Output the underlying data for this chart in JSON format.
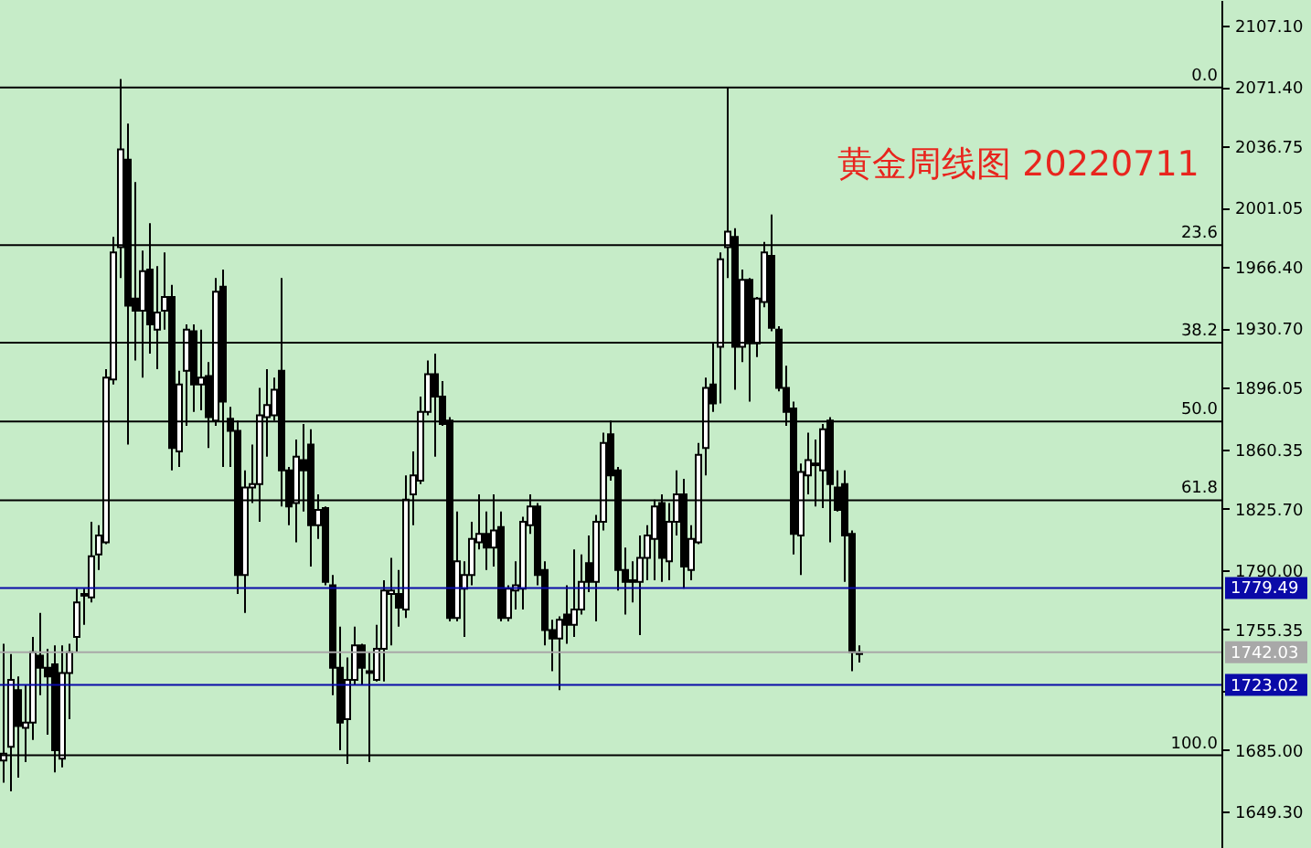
{
  "chart_data": {
    "type": "candlestick",
    "title": "黄金周线图 20220711",
    "categories": [
      null,
      null,
      null,
      null,
      null,
      null,
      null,
      null,
      null,
      null,
      null,
      null,
      null,
      null,
      null,
      null,
      null,
      null,
      null,
      null,
      null,
      null,
      null,
      null,
      null,
      null,
      null,
      null,
      null,
      null,
      null,
      null,
      null,
      null,
      null,
      null,
      null,
      null,
      null,
      null,
      null,
      null,
      null,
      null,
      null,
      null,
      null,
      null,
      null,
      null,
      null,
      null,
      null,
      null,
      null,
      null,
      null,
      null,
      null,
      null,
      null,
      null,
      null,
      null,
      null,
      null,
      null,
      null,
      null,
      null,
      null,
      null,
      null,
      null,
      null,
      null,
      null,
      null,
      null,
      null,
      null,
      null,
      null,
      null,
      null,
      null,
      null,
      null,
      null,
      null,
      null,
      null,
      null,
      null,
      null,
      null,
      null,
      null,
      null,
      null,
      null,
      null,
      null,
      null,
      null,
      null,
      null,
      null,
      null,
      null,
      null,
      null,
      null,
      null,
      null,
      null,
      null,
      null,
      null,
      null,
      null,
      null,
      null,
      null,
      null,
      null,
      null,
      null,
      null,
      null,
      null,
      null,
      null,
      null,
      null,
      null,
      null,
      null,
      null,
      null,
      null,
      null,
      null,
      null,
      null,
      null,
      null,
      null,
      null,
      null,
      null,
      null,
      null,
      null,
      null,
      null,
      null,
      null,
      null,
      null,
      null,
      null,
      null,
      null,
      null,
      null,
      null
    ],
    "ohlc": [
      [
        1679,
        1747,
        1666,
        1683
      ],
      [
        1687,
        1741,
        1661,
        1726
      ],
      [
        1720,
        1728,
        1669,
        1699
      ],
      [
        1698,
        1723,
        1678,
        1701
      ],
      [
        1701,
        1751,
        1691,
        1742
      ],
      [
        1740,
        1765,
        1717,
        1733
      ],
      [
        1733,
        1744,
        1694,
        1728
      ],
      [
        1735,
        1746,
        1672,
        1685
      ],
      [
        1680,
        1746,
        1675,
        1730
      ],
      [
        1730,
        1747,
        1703,
        1742
      ],
      [
        1751,
        1779,
        1742,
        1771
      ],
      [
        1775,
        1779,
        1758,
        1776
      ],
      [
        1774,
        1818,
        1771,
        1798
      ],
      [
        1799,
        1816,
        1790,
        1810
      ],
      [
        1806,
        1907,
        1805,
        1902
      ],
      [
        1901,
        1984,
        1898,
        1975
      ],
      [
        1978,
        2076,
        1960,
        2035
      ],
      [
        2029,
        2050,
        1863,
        1944
      ],
      [
        1948,
        2016,
        1912,
        1941
      ],
      [
        1941,
        1976,
        1902,
        1964
      ],
      [
        1965,
        1992,
        1916,
        1933
      ],
      [
        1930,
        1967,
        1907,
        1940
      ],
      [
        1941,
        1975,
        1930,
        1949
      ],
      [
        1949,
        1956,
        1848,
        1861
      ],
      [
        1859,
        1906,
        1850,
        1898
      ],
      [
        1906,
        1933,
        1874,
        1930
      ],
      [
        1929,
        1933,
        1882,
        1898
      ],
      [
        1898,
        1930,
        1883,
        1902
      ],
      [
        1903,
        1911,
        1861,
        1879
      ],
      [
        1877,
        1960,
        1874,
        1952
      ],
      [
        1955,
        1965,
        1850,
        1888
      ],
      [
        1878,
        1885,
        1850,
        1871
      ],
      [
        1871,
        1877,
        1776,
        1787
      ],
      [
        1787,
        1848,
        1765,
        1838
      ],
      [
        1838,
        1863,
        1829,
        1840
      ],
      [
        1840,
        1896,
        1818,
        1880
      ],
      [
        1879,
        1907,
        1856,
        1886
      ],
      [
        1880,
        1902,
        1877,
        1895
      ],
      [
        1906,
        1960,
        1827,
        1848
      ],
      [
        1848,
        1850,
        1816,
        1827
      ],
      [
        1829,
        1866,
        1806,
        1856
      ],
      [
        1854,
        1875,
        1824,
        1848
      ],
      [
        1863,
        1872,
        1792,
        1816
      ],
      [
        1816,
        1834,
        1808,
        1825
      ],
      [
        1826,
        1827,
        1781,
        1783
      ],
      [
        1781,
        1787,
        1717,
        1733
      ],
      [
        1733,
        1757,
        1685,
        1701
      ],
      [
        1703,
        1739,
        1677,
        1726
      ],
      [
        1726,
        1757,
        1723,
        1746
      ],
      [
        1746,
        1747,
        1723,
        1733
      ],
      [
        1731,
        1742,
        1678,
        1730
      ],
      [
        1726,
        1758,
        1725,
        1744
      ],
      [
        1744,
        1784,
        1725,
        1778
      ],
      [
        1776,
        1797,
        1746,
        1778
      ],
      [
        1776,
        1790,
        1757,
        1768
      ],
      [
        1767,
        1845,
        1762,
        1831
      ],
      [
        1834,
        1859,
        1816,
        1845
      ],
      [
        1842,
        1891,
        1840,
        1882
      ],
      [
        1882,
        1912,
        1880,
        1904
      ],
      [
        1904,
        1916,
        1856,
        1891
      ],
      [
        1891,
        1900,
        1874,
        1875
      ],
      [
        1877,
        1879,
        1760,
        1762
      ],
      [
        1762,
        1824,
        1760,
        1795
      ],
      [
        1779,
        1795,
        1751,
        1787
      ],
      [
        1787,
        1818,
        1781,
        1808
      ],
      [
        1806,
        1834,
        1802,
        1811
      ],
      [
        1811,
        1824,
        1790,
        1803
      ],
      [
        1803,
        1834,
        1792,
        1813
      ],
      [
        1815,
        1824,
        1760,
        1762
      ],
      [
        1762,
        1781,
        1760,
        1779
      ],
      [
        1778,
        1795,
        1767,
        1781
      ],
      [
        1779,
        1821,
        1767,
        1818
      ],
      [
        1816,
        1834,
        1811,
        1827
      ],
      [
        1827,
        1829,
        1781,
        1787
      ],
      [
        1790,
        1795,
        1746,
        1755
      ],
      [
        1755,
        1761,
        1731,
        1750
      ],
      [
        1750,
        1763,
        1720,
        1761
      ],
      [
        1764,
        1781,
        1747,
        1758
      ],
      [
        1758,
        1802,
        1751,
        1767
      ],
      [
        1767,
        1799,
        1764,
        1783
      ],
      [
        1794,
        1810,
        1777,
        1783
      ],
      [
        1783,
        1822,
        1760,
        1818
      ],
      [
        1818,
        1870,
        1813,
        1864
      ],
      [
        1869,
        1877,
        1842,
        1845
      ],
      [
        1848,
        1850,
        1778,
        1790
      ],
      [
        1790,
        1803,
        1764,
        1783
      ],
      [
        1783,
        1795,
        1771,
        1784
      ],
      [
        1783,
        1810,
        1752,
        1797
      ],
      [
        1797,
        1816,
        1784,
        1810
      ],
      [
        1808,
        1831,
        1784,
        1827
      ],
      [
        1829,
        1834,
        1783,
        1797
      ],
      [
        1795,
        1829,
        1784,
        1818
      ],
      [
        1818,
        1848,
        1810,
        1834
      ],
      [
        1834,
        1843,
        1779,
        1792
      ],
      [
        1790,
        1816,
        1784,
        1808
      ],
      [
        1806,
        1864,
        1805,
        1857
      ],
      [
        1861,
        1902,
        1845,
        1896
      ],
      [
        1898,
        1922,
        1882,
        1887
      ],
      [
        1920,
        1975,
        1887,
        1971
      ],
      [
        1978,
        2071,
        1960,
        1987
      ],
      [
        1984,
        1989,
        1895,
        1920
      ],
      [
        1920,
        1965,
        1911,
        1959
      ],
      [
        1959,
        1960,
        1888,
        1922
      ],
      [
        1922,
        1949,
        1914,
        1948
      ],
      [
        1946,
        1981,
        1943,
        1975
      ],
      [
        1973,
        1997,
        1929,
        1931
      ],
      [
        1930,
        1932,
        1894,
        1896
      ],
      [
        1896,
        1909,
        1874,
        1882
      ],
      [
        1884,
        1888,
        1799,
        1811
      ],
      [
        1810,
        1852,
        1787,
        1847
      ],
      [
        1845,
        1870,
        1834,
        1854
      ],
      [
        1851,
        1866,
        1827,
        1852
      ],
      [
        1848,
        1875,
        1826,
        1872
      ],
      [
        1877,
        1879,
        1806,
        1840
      ],
      [
        1838,
        1848,
        1824,
        1825
      ],
      [
        1840,
        1848,
        1783,
        1810
      ],
      [
        1811,
        1813,
        1731,
        1742
      ],
      [
        1741,
        1746,
        1736,
        1742.03
      ],
      null,
      null,
      null,
      null,
      null,
      null,
      null,
      null,
      null,
      null,
      null,
      null,
      null,
      null,
      null,
      null,
      null,
      null,
      null,
      null,
      null,
      null,
      null,
      null,
      null,
      null,
      null,
      null,
      null,
      null,
      null,
      null,
      null,
      null,
      null,
      null,
      null,
      null,
      null,
      null,
      null,
      null,
      null,
      null,
      null,
      null,
      null,
      null,
      null
    ],
    "ylim": [
      1628,
      2122
    ],
    "yticks": [
      {
        "value": 1649.3,
        "label": "1649.30"
      },
      {
        "value": 1685,
        "label": "1685.00"
      },
      {
        "value": 1719.65,
        "label": null
      },
      {
        "value": 1755.35,
        "label": "1755.35"
      },
      {
        "value": 1790,
        "label": "1790.00"
      },
      {
        "value": 1825.7,
        "label": "1825.70"
      },
      {
        "value": 1860.35,
        "label": "1860.35"
      },
      {
        "value": 1896.05,
        "label": "1896.05"
      },
      {
        "value": 1930.7,
        "label": "1930.70"
      },
      {
        "value": 1966.4,
        "label": "1966.40"
      },
      {
        "value": 2001.05,
        "label": "2001.05"
      },
      {
        "value": 2036.75,
        "label": "2036.75"
      },
      {
        "value": 2071.4,
        "label": "2071.40"
      },
      {
        "value": 2107.1,
        "label": "2107.10"
      }
    ],
    "tick_labels": "y",
    "annotations": [
      {
        "text": "0.0",
        "y": 2071
      },
      {
        "text": "23.6",
        "y": 1979.2
      },
      {
        "text": "38.2",
        "y": 1922.4
      },
      {
        "text": "50.0",
        "y": 1876.5
      },
      {
        "text": "61.8",
        "y": 1830.6
      },
      {
        "text": "100.0",
        "y": 1682
      }
    ],
    "ref_lines": [
      {
        "axis": "y",
        "value": 2071
      },
      {
        "axis": "y",
        "value": 1979.2
      },
      {
        "axis": "y",
        "value": 1922.4
      },
      {
        "axis": "y",
        "value": 1876.5
      },
      {
        "axis": "y",
        "value": 1830.6
      },
      {
        "axis": "y",
        "value": 1682
      },
      {
        "axis": "y",
        "value": 1779.49,
        "label": "1779.49",
        "color": "#0a0aa8"
      },
      {
        "axis": "y",
        "value": 1742.03,
        "label": "1742.03",
        "color": "#a8a8a8"
      },
      {
        "axis": "y",
        "value": 1723.02,
        "label": "1723.02",
        "color": "#0a0aa8"
      }
    ]
  }
}
